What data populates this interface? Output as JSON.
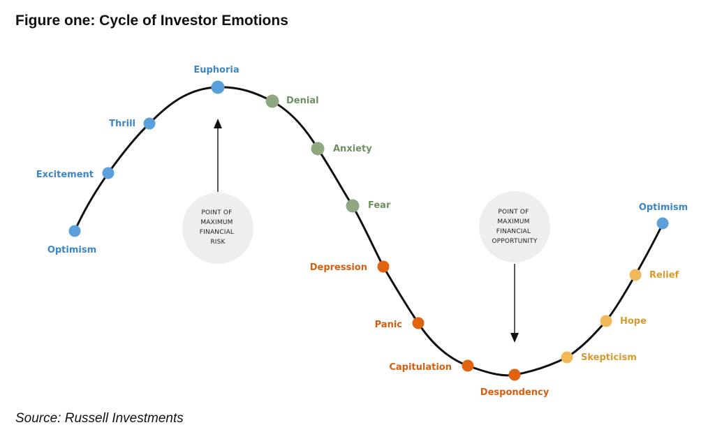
{
  "title": "Figure one: Cycle of Investor Emotions",
  "source": "Source: Russell Investments",
  "colors": {
    "curve": "#111111",
    "greed": "#5aa0dc",
    "early_fall": "#8fa881",
    "crash": "#e06410",
    "recovery": "#f0b95a",
    "annotation_circle": "#eeeeee"
  },
  "stages": [
    {
      "name": "Optimism",
      "group": "greed"
    },
    {
      "name": "Excitement",
      "group": "greed"
    },
    {
      "name": "Thrill",
      "group": "greed"
    },
    {
      "name": "Euphoria",
      "group": "greed"
    },
    {
      "name": "Denial",
      "group": "early_fall"
    },
    {
      "name": "Anxiety",
      "group": "early_fall"
    },
    {
      "name": "Fear",
      "group": "early_fall"
    },
    {
      "name": "Depression",
      "group": "crash"
    },
    {
      "name": "Panic",
      "group": "crash"
    },
    {
      "name": "Capitulation",
      "group": "crash"
    },
    {
      "name": "Despondency",
      "group": "crash"
    },
    {
      "name": "Skepticism",
      "group": "recovery"
    },
    {
      "name": "Hope",
      "group": "recovery"
    },
    {
      "name": "Relief",
      "group": "recovery"
    },
    {
      "name": "Optimism",
      "group": "greed"
    }
  ],
  "annotations": {
    "risk": [
      "POINT OF",
      "MAXIMUM",
      "FINANCIAL",
      "RISK"
    ],
    "opportunity": [
      "POINT OF",
      "MAXIMUM",
      "FINANCIAL",
      "OPPORTUNITY"
    ]
  }
}
